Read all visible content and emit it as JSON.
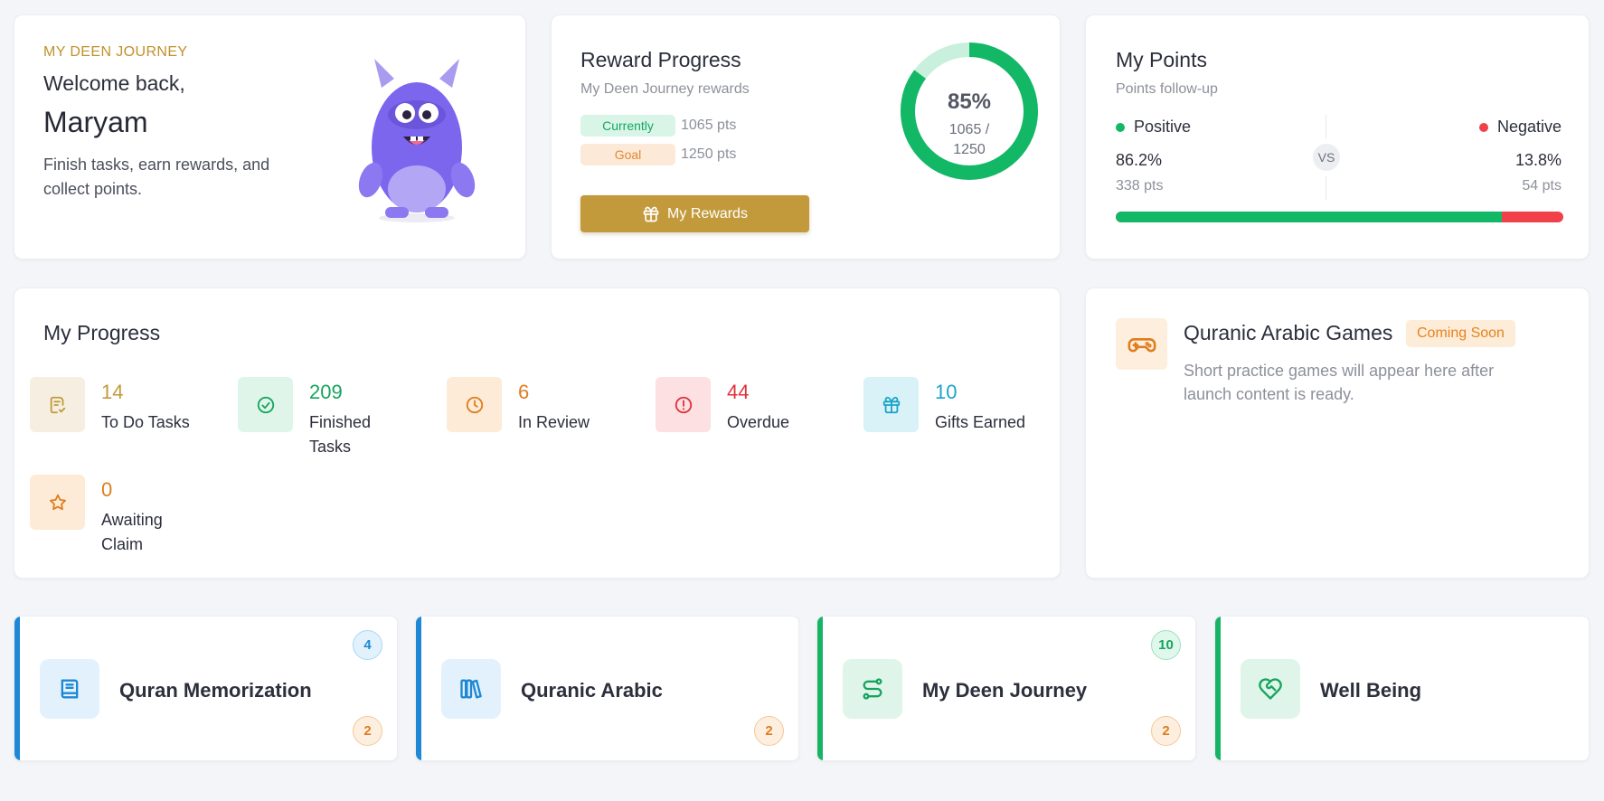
{
  "welcome": {
    "eyebrow": "MY DEEN JOURNEY",
    "greeting": "Welcome back,",
    "name": "Maryam",
    "description": "Finish tasks, earn rewards, and collect points.",
    "mascot_icon": "purple-monster-mascot"
  },
  "reward_progress": {
    "title": "Reward Progress",
    "subtitle": "My Deen Journey rewards",
    "current_label": "Currently",
    "current_value": "1065 pts",
    "goal_label": "Goal",
    "goal_value": "1250 pts",
    "button_label": "My Rewards",
    "button_icon": "gift-icon",
    "percent_text": "85%",
    "ratio_text": "1065 / 1250",
    "progress_fraction": 0.852,
    "colors": {
      "ring": "#12b865",
      "ring_track": "#c9f0dc",
      "button": "#c29a3c"
    }
  },
  "my_points": {
    "title": "My Points",
    "subtitle": "Points follow-up",
    "positive_label": "Positive",
    "negative_label": "Negative",
    "vs": "VS",
    "positive_pct": "86.2%",
    "negative_pct": "13.8%",
    "positive_pts": "338 pts",
    "negative_pts": "54 pts",
    "positive_fraction": 0.862,
    "colors": {
      "positive": "#12b865",
      "negative": "#f0404a"
    }
  },
  "my_progress": {
    "title": "My Progress",
    "stats": [
      {
        "value": "14",
        "label": "To Do Tasks",
        "icon": "task-list-icon",
        "color": "#c29a3c",
        "bg": "#f6efe1"
      },
      {
        "value": "209",
        "label": "Finished Tasks",
        "icon": "check-circle-icon",
        "color": "#17a45e",
        "bg": "#dff5ea"
      },
      {
        "value": "6",
        "label": "In Review",
        "icon": "clock-icon",
        "color": "#e07d1c",
        "bg": "#fdebd8"
      },
      {
        "value": "44",
        "label": "Overdue",
        "icon": "alert-circle-icon",
        "color": "#e0323c",
        "bg": "#fde0e1"
      },
      {
        "value": "10",
        "label": "Gifts Earned",
        "icon": "gift-icon",
        "color": "#1aa4c8",
        "bg": "#d9f2f8"
      },
      {
        "value": "0",
        "label": "Awaiting Claim",
        "icon": "star-icon",
        "color": "#e07d1c",
        "bg": "#fdebd8"
      }
    ]
  },
  "games": {
    "title": "Quranic Arabic Games",
    "badge": "Coming Soon",
    "description": "Short practice games will appear here after launch content is ready.",
    "icon": "gamepad-icon"
  },
  "subjects": [
    {
      "title": "Quran Memorization",
      "icon": "book-icon",
      "accent": "#1e88d4",
      "icon_bg": "#e2f1fc",
      "top_count": "4",
      "top_badge": "blue",
      "bottom_count": "2",
      "bottom_badge": "orange"
    },
    {
      "title": "Quranic Arabic",
      "icon": "books-icon",
      "accent": "#1e88d4",
      "icon_bg": "#e2f1fc",
      "top_count": "",
      "top_badge": "",
      "bottom_count": "2",
      "bottom_badge": "orange"
    },
    {
      "title": "My Deen Journey",
      "icon": "route-icon",
      "accent": "#17b466",
      "icon_bg": "#dff5ea",
      "top_count": "10",
      "top_badge": "green",
      "bottom_count": "2",
      "bottom_badge": "orange"
    },
    {
      "title": "Well Being",
      "icon": "heart-handshake-icon",
      "accent": "#17b466",
      "icon_bg": "#dff5ea",
      "top_count": "",
      "top_badge": "",
      "bottom_count": "",
      "bottom_badge": ""
    }
  ]
}
